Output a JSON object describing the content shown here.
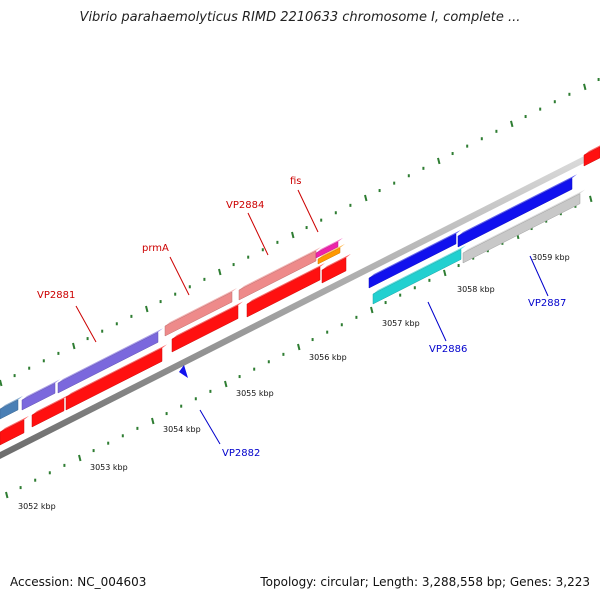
{
  "title": "Vibrio parahaemolyticus RIMD 2210633 chromosome I, complete ...",
  "footer": {
    "accession": "Accession: NC_004603",
    "summary": "Topology: circular; Length: 3,288,558 bp; Genes: 3,223"
  },
  "ticks": [
    "3052 kbp",
    "3053 kbp",
    "3054 kbp",
    "3055 kbp",
    "3056 kbp",
    "3057 kbp",
    "3058 kbp",
    "3059 kbp"
  ],
  "gene_labels": [
    {
      "text": "VP2881",
      "color": "#cc0000"
    },
    {
      "text": "prmA",
      "color": "#cc0000"
    },
    {
      "text": "VP2884",
      "color": "#cc0000"
    },
    {
      "text": "fis",
      "color": "#cc0000"
    },
    {
      "text": "VP2882",
      "color": "#0000cc"
    },
    {
      "text": "VP2886",
      "color": "#0000cc"
    },
    {
      "text": "VP2887",
      "color": "#0000cc"
    }
  ],
  "colors": {
    "backbone": "#8a8a8a",
    "tick_mark": "#2e7d32",
    "cds_forward": "#ff1010",
    "cds_reverse": "#1111ee",
    "gene_pink": "#ee8a8a",
    "gene_purple": "#7b68dd",
    "gene_steel": "#4a7fb5",
    "gene_cyan": "#22d0d0",
    "gene_gray": "#c8c8c8",
    "gene_magenta": "#ee22aa",
    "gene_orange": "#ff9900"
  }
}
